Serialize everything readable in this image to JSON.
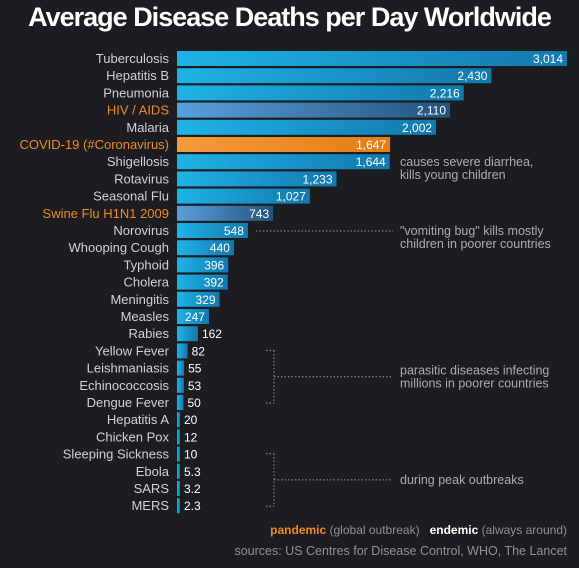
{
  "chart_data": {
    "type": "bar",
    "orientation": "horizontal",
    "title": "Average Disease Deaths per Day Worldwide",
    "categories": [
      "Tuberculosis",
      "Hepatitis B",
      "Pneumonia",
      "HIV / AIDS",
      "Malaria",
      "COVID-19 (#Coronavirus)",
      "Shigellosis",
      "Rotavirus",
      "Seasonal Flu",
      "Swine Flu H1N1 2009",
      "Norovirus",
      "Whooping Cough",
      "Typhoid",
      "Cholera",
      "Meningitis",
      "Measles",
      "Rabies",
      "Yellow Fever",
      "Leishmaniasis",
      "Echinococcosis",
      "Dengue Fever",
      "Hepatitis A",
      "Chicken Pox",
      "Sleeping Sickness",
      "Ebola",
      "SARS",
      "MERS"
    ],
    "values": [
      3014,
      2430,
      2216,
      2110,
      2002,
      1647,
      1644,
      1233,
      1027,
      743,
      548,
      440,
      396,
      392,
      329,
      247,
      162,
      82,
      55,
      53,
      50,
      20,
      12,
      10,
      5.3,
      3.2,
      2.3
    ],
    "value_labels": [
      "3,014",
      "2,430",
      "2,216",
      "2,110",
      "2,002",
      "1,647",
      "1,644",
      "1,233",
      "1,027",
      "743",
      "548",
      "440",
      "396",
      "392",
      "329",
      "247",
      "162",
      "82",
      "55",
      "53",
      "50",
      "20",
      "12",
      "10",
      "5.3",
      "3.2",
      "2.3"
    ],
    "pandemic_categories": [
      "HIV / AIDS",
      "COVID-19 (#Coronavirus)",
      "Swine Flu H1N1 2009"
    ],
    "highlight_category": "COVID-19 (#Coronavirus)",
    "xlim": [
      0,
      3014
    ],
    "colors": {
      "endemic": "#1aa3d9",
      "endemic_dark": "#1274a8",
      "pandemic": "#3a86c8",
      "highlight": "#f08a24"
    },
    "annotations": [
      {
        "lines": [
          "causes severe diarrhea,",
          "kills young children"
        ],
        "target": "Shigellosis"
      },
      {
        "lines": [
          "\"vomiting bug\" kills mostly",
          "children in poorer countries"
        ],
        "target": "Norovirus"
      },
      {
        "lines": [
          "parasitic diseases infecting",
          "millions in poorer countries"
        ],
        "range": [
          "Yellow Fever",
          "Dengue Fever"
        ]
      },
      {
        "lines": [
          "during peak outbreaks"
        ],
        "range": [
          "Sleeping Sickness",
          "MERS"
        ]
      }
    ]
  },
  "legend": {
    "pandemic_label": "pandemic",
    "pandemic_desc": "(global outbreak)",
    "endemic_label": "endemic",
    "endemic_desc": "(always around)"
  },
  "sources": "sources: US Centres for Disease Control, WHO, The Lancet"
}
